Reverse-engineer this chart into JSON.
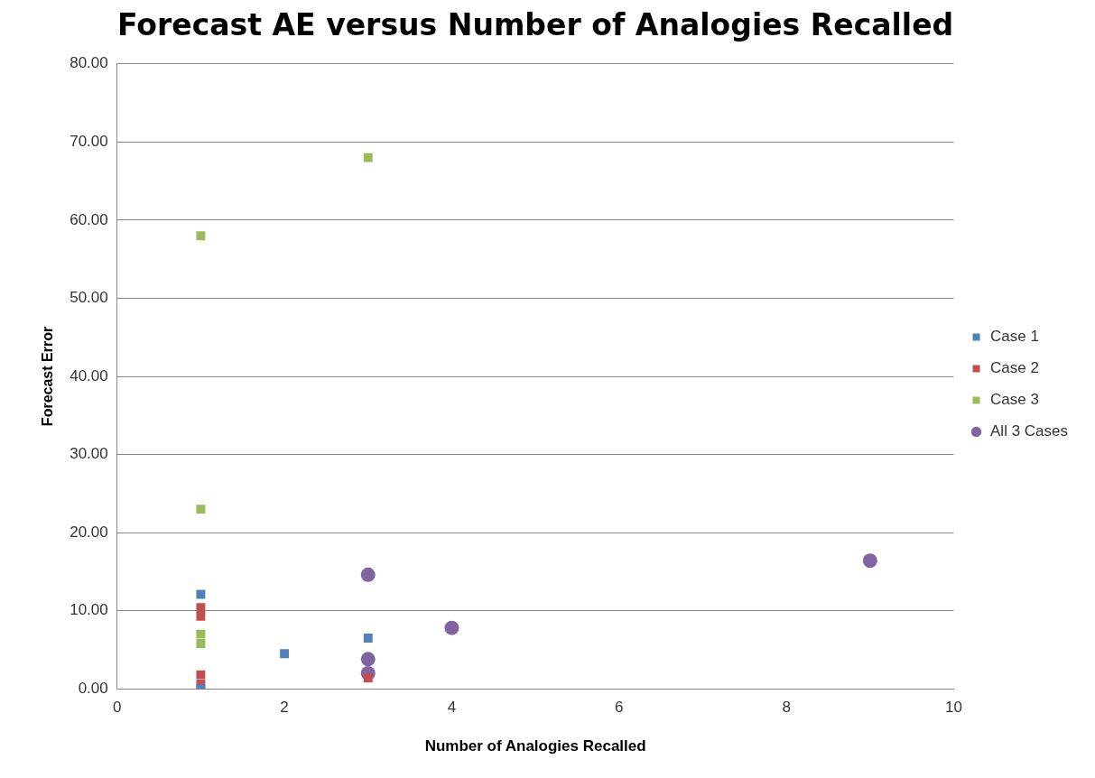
{
  "chart_data": {
    "type": "scatter",
    "title": "Forecast AE versus Number of Analogies Recalled",
    "xlabel": "Number of Analogies Recalled",
    "ylabel": "Forecast Error",
    "xlim": [
      0,
      10
    ],
    "xticks": [
      0,
      2,
      4,
      6,
      8,
      10
    ],
    "ylim": [
      0,
      80
    ],
    "yticks": [
      {
        "value": 0,
        "label": "0.00"
      },
      {
        "value": 10,
        "label": "10.00"
      },
      {
        "value": 20,
        "label": "20.00"
      },
      {
        "value": 30,
        "label": "30.00"
      },
      {
        "value": 40,
        "label": "40.00"
      },
      {
        "value": 50,
        "label": "50.00"
      },
      {
        "value": 60,
        "label": "60.00"
      },
      {
        "value": 70,
        "label": "70.00"
      },
      {
        "value": 80,
        "label": "80.00"
      }
    ],
    "grid": "y",
    "legend": "right",
    "series": [
      {
        "name": "Case 1",
        "color": "#4f81bd",
        "marker": "square",
        "x": [
          1,
          1,
          2,
          3
        ],
        "values": [
          12.1,
          0.0,
          4.5,
          6.5
        ]
      },
      {
        "name": "Case 2",
        "color": "#c0504d",
        "marker": "square",
        "x": [
          1,
          1,
          1,
          1,
          3
        ],
        "values": [
          10.4,
          9.3,
          1.8,
          0.6,
          1.4
        ]
      },
      {
        "name": "Case 3",
        "color": "#9bbb59",
        "marker": "square",
        "x": [
          1,
          3,
          1,
          1,
          1
        ],
        "values": [
          58,
          68,
          23,
          7.0,
          5.8
        ]
      },
      {
        "name": "All 3 Cases",
        "color": "#8064a2",
        "marker": "circle",
        "x": [
          3,
          3,
          3,
          4,
          9
        ],
        "values": [
          14.6,
          3.8,
          2.0,
          7.8,
          16.4
        ]
      }
    ]
  }
}
